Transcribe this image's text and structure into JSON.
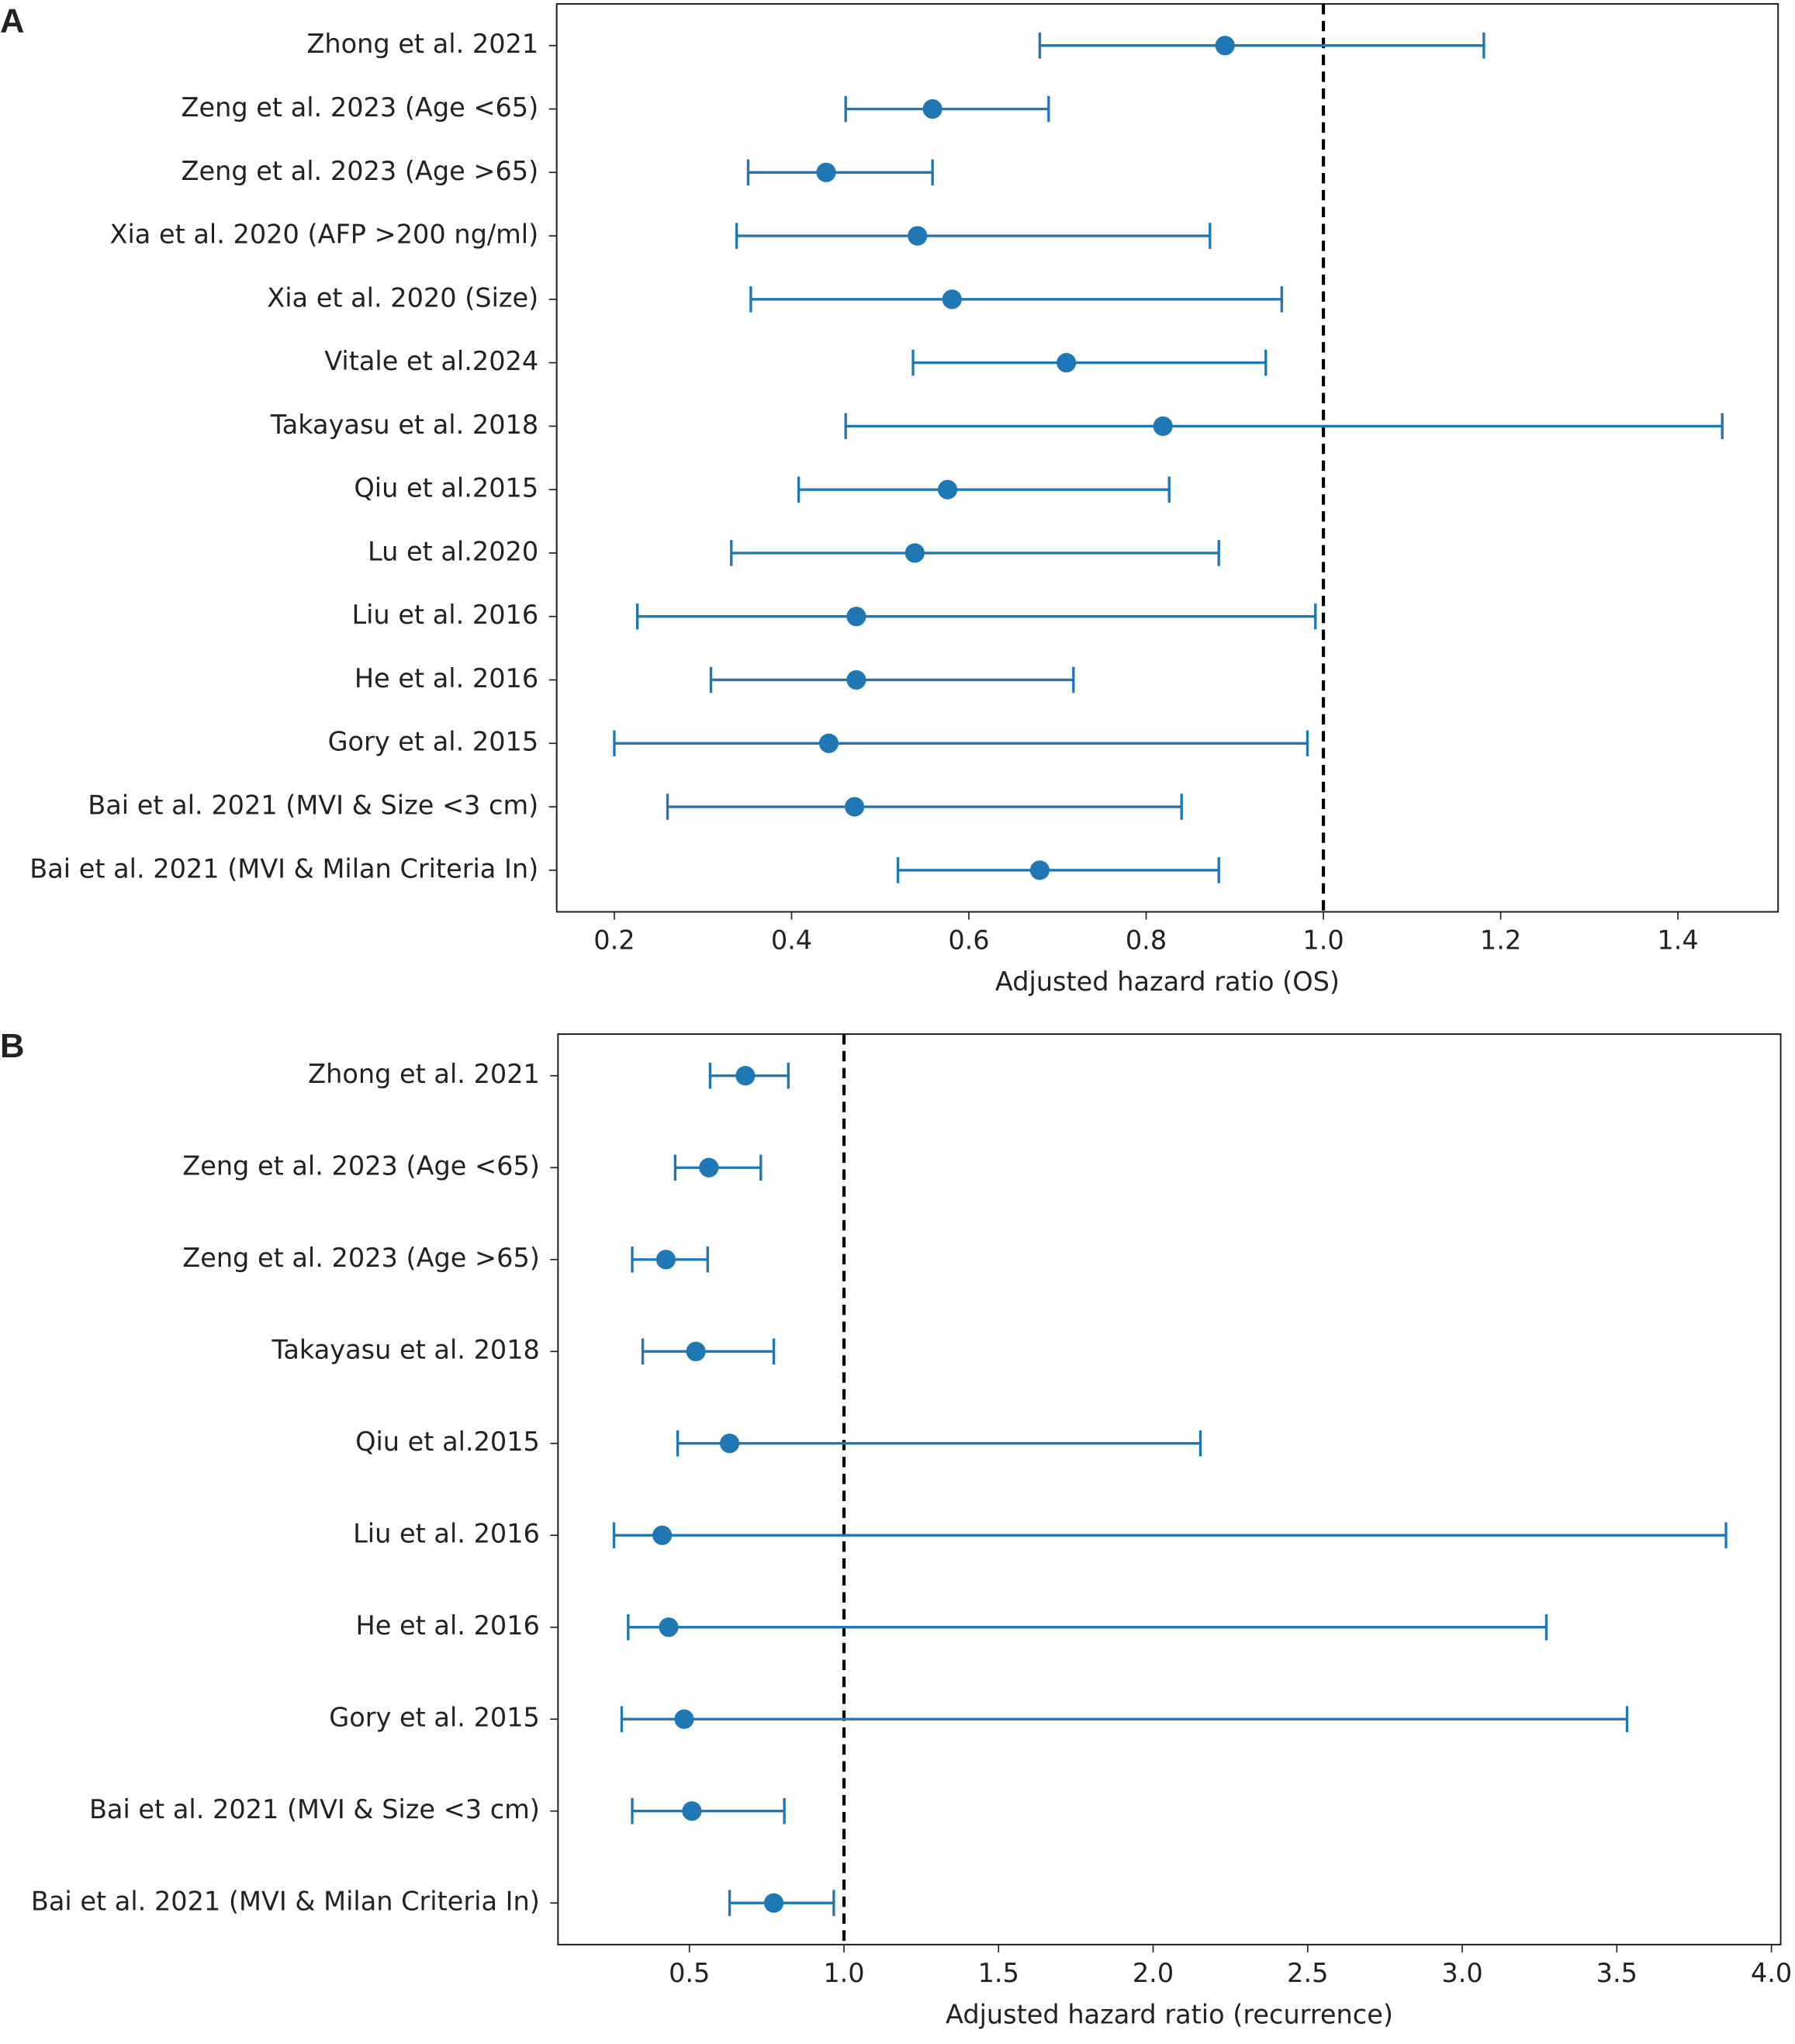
{
  "chart_data": [
    {
      "type": "forest",
      "panel_label": "A",
      "x_label": "Adjusted hazard ratio (OS)",
      "color": "#1f77b4",
      "reference": 1.0,
      "categories": [
        "Zhong et al. 2021",
        "Zeng et al. 2023 (Age <65)",
        "Zeng et al. 2023 (Age >65)",
        "Xia et al. 2020 (AFP >200 ng/ml)",
        "Xia et al. 2020 (Size)",
        "Vitale et al.2024",
        "Takayasu et al. 2018",
        "Qiu et al.2015",
        "Lu et al.2020",
        "Liu et al. 2016",
        "He et al. 2016",
        "Gory et al. 2015",
        "Bai et al. 2021 (MVI & Size <3 cm)",
        "Bai et al. 2021 (MVI & Milan Criteria In)"
      ],
      "values": [
        0.889,
        0.559,
        0.439,
        0.542,
        0.581,
        0.71,
        0.819,
        0.576,
        0.539,
        0.473,
        0.473,
        0.442,
        0.471,
        0.68
      ],
      "lower": [
        0.68,
        0.461,
        0.351,
        0.338,
        0.354,
        0.537,
        0.461,
        0.408,
        0.332,
        0.226,
        0.309,
        0.2,
        0.26,
        0.52
      ],
      "upper": [
        1.181,
        0.69,
        0.559,
        0.872,
        0.953,
        0.935,
        1.45,
        0.826,
        0.882,
        0.991,
        0.718,
        0.982,
        0.84,
        0.882
      ],
      "xlim": [
        0.135,
        1.513
      ],
      "xticks": [
        0.2,
        0.4,
        0.6,
        0.8,
        {
          "value": 1,
          "label": "1.0"
        },
        1.2,
        1.4
      ]
    },
    {
      "type": "forest",
      "panel_label": "B",
      "x_label": "Adjusted hazard ratio (recurrence)",
      "color": "#1f77b4",
      "reference": 1.0,
      "categories": [
        "Zhong et al. 2021",
        "Zeng et al. 2023 (Age <65)",
        "Zeng et al. 2023 (Age >65)",
        "Takayasu et al. 2018",
        "Qiu et al.2015",
        "Liu et al. 2016",
        "He et al. 2016",
        "Gory et al. 2015",
        "Bai et al. 2021 (MVI & Size <3 cm)",
        "Bai et al. 2021 (MVI & Milan Criteria In)"
      ],
      "values": [
        0.681,
        0.563,
        0.424,
        0.521,
        0.63,
        0.412,
        0.433,
        0.483,
        0.508,
        0.773
      ],
      "lower": [
        0.567,
        0.454,
        0.315,
        0.349,
        0.462,
        0.256,
        0.302,
        0.281,
        0.315,
        0.63
      ],
      "upper": [
        0.82,
        0.731,
        0.559,
        0.773,
        2.153,
        3.853,
        3.272,
        3.533,
        0.807,
        0.967
      ],
      "xlim": [
        0.075,
        4.03
      ],
      "xticks": [
        0.5,
        {
          "value": 1,
          "label": "1.0"
        },
        1.5,
        {
          "value": 2,
          "label": "2.0"
        },
        2.5,
        {
          "value": 3,
          "label": "3.0"
        },
        3.5,
        {
          "value": 4,
          "label": "4.0"
        }
      ]
    }
  ]
}
